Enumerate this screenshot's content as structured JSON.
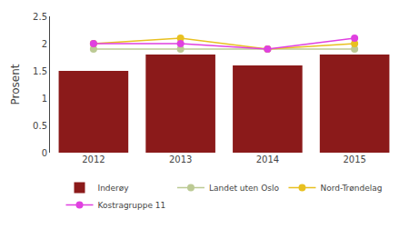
{
  "chart_data": {
    "type": "bar",
    "categories": [
      "2012",
      "2013",
      "2014",
      "2015"
    ],
    "ylabel": "Prosent",
    "ylim": [
      0,
      2.5
    ],
    "yticks": [
      0,
      0.5,
      1,
      1.5,
      2,
      2.5
    ],
    "grid": false,
    "legend": "bottom",
    "series": [
      {
        "name": "Inderøy",
        "type": "bar",
        "color": "#8B1A1A",
        "values": [
          1.5,
          1.8,
          1.6,
          1.8
        ]
      },
      {
        "name": "Landet uten Oslo",
        "type": "line",
        "marker": "circle",
        "line_style": "solid",
        "color": "#BCCA94",
        "values": [
          1.9,
          1.9,
          1.9,
          1.9
        ]
      },
      {
        "name": "Nord-Trøndelag",
        "type": "line",
        "marker": "circle",
        "line_style": "solid",
        "color": "#E8C020",
        "values": [
          2.0,
          2.1,
          1.9,
          2.0
        ]
      },
      {
        "name": "Kostragruppe 11",
        "type": "line",
        "marker": "circle",
        "line_style": "solid",
        "color": "#E040E0",
        "values": [
          2.0,
          2.0,
          1.9,
          2.1
        ]
      }
    ]
  }
}
